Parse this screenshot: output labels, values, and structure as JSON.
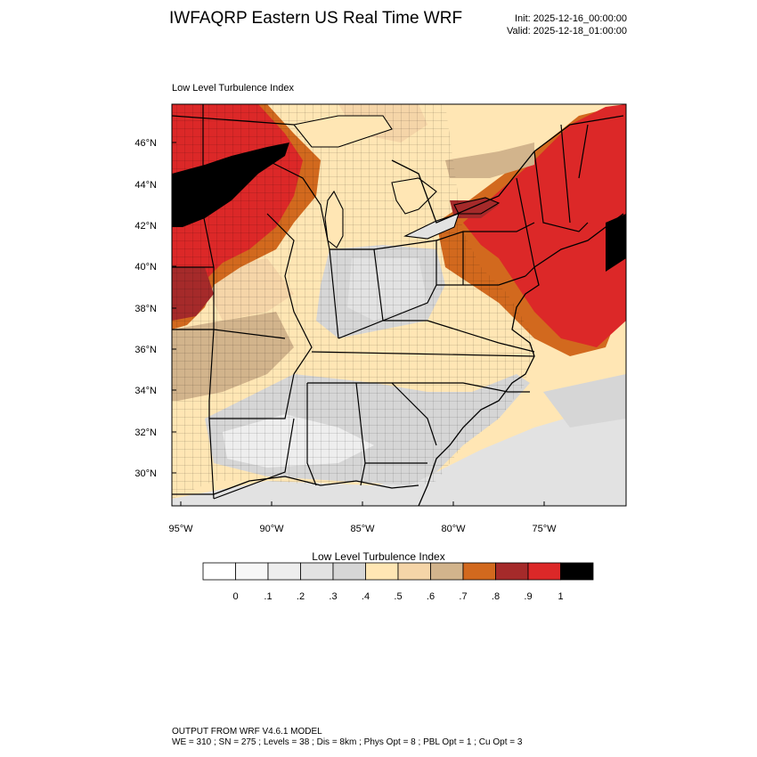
{
  "header": {
    "title": "IWFAQRP Eastern US Real Time WRF",
    "init": "Init: 2025-12-16_00:00:00",
    "valid": "Valid: 2025-12-18_01:00:00"
  },
  "panel": {
    "title": "Low Level Turbulence Index",
    "lat_labels": [
      "46°N",
      "44°N",
      "42°N",
      "40°N",
      "38°N",
      "36°N",
      "34°N",
      "32°N",
      "30°N"
    ],
    "lon_labels": [
      "95°W",
      "90°W",
      "85°W",
      "80°W",
      "75°W"
    ]
  },
  "legend": {
    "title": "Low Level Turbulence Index",
    "colors": [
      "#ffffff",
      "#f7f7f7",
      "#eeeeee",
      "#e2e2e2",
      "#d6d6d6",
      "#ffe6b4",
      "#f5d5a8",
      "#d2b48c",
      "#d2691e",
      "#a52a2a",
      "#dc2828",
      "#000000"
    ],
    "labels": [
      "0",
      ".1",
      ".2",
      ".3",
      ".4",
      ".5",
      ".6",
      ".7",
      ".8",
      ".9",
      "1"
    ]
  },
  "footer": {
    "line1": "OUTPUT FROM WRF V4.6.1 MODEL",
    "line2": "WE = 310 ; SN = 275 ; Levels = 38 ; Dis = 8km ; Phys Opt = 8 ; PBL Opt = 1 ; Cu Opt = 3"
  }
}
